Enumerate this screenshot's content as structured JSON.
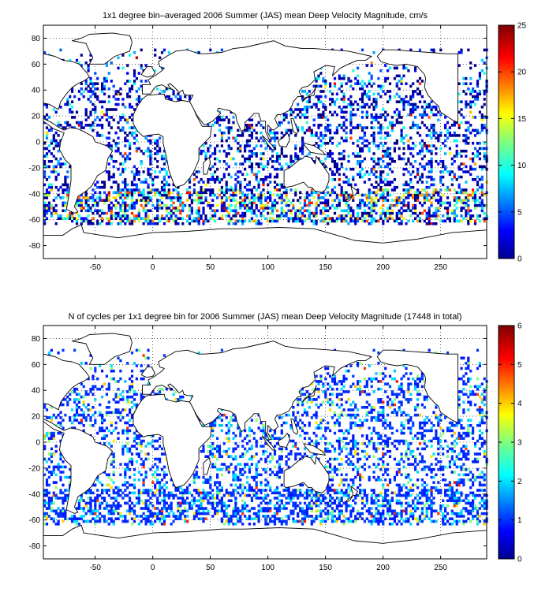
{
  "chart_data": [
    {
      "type": "heatmap",
      "title": "1x1 degree bin–averaged 2006 Summer (JAS) mean Deep Velocity Magnitude, cm/s",
      "xlabel": "",
      "ylabel": "",
      "xlim": [
        -95,
        290
      ],
      "ylim": [
        -90,
        90
      ],
      "xticks": [
        -50,
        0,
        50,
        100,
        150,
        200,
        250
      ],
      "yticks": [
        80,
        60,
        40,
        20,
        0,
        -20,
        -40,
        -60,
        -80
      ],
      "grid": true,
      "colorbar": {
        "min": 0,
        "max": 25,
        "ticks": [
          0,
          5,
          10,
          15,
          20,
          25
        ]
      },
      "colormap": "jet",
      "seed": 11,
      "value_profile": "velocity"
    },
    {
      "type": "heatmap",
      "title": "N of cycles per 1x1 degree bin for 2006 Summer (JAS) mean Deep Velocity Magnitude (17448 in total)",
      "xlabel": "",
      "ylabel": "",
      "xlim": [
        -95,
        290
      ],
      "ylim": [
        -90,
        90
      ],
      "xticks": [
        -50,
        0,
        50,
        100,
        150,
        200,
        250
      ],
      "yticks": [
        80,
        60,
        40,
        20,
        0,
        -20,
        -40,
        -60,
        -80
      ],
      "grid": true,
      "colorbar": {
        "min": 0,
        "max": 6,
        "ticks": [
          0,
          1,
          2,
          3,
          4,
          5,
          6
        ]
      },
      "colormap": "jet",
      "seed": 29,
      "value_profile": "counts"
    }
  ]
}
